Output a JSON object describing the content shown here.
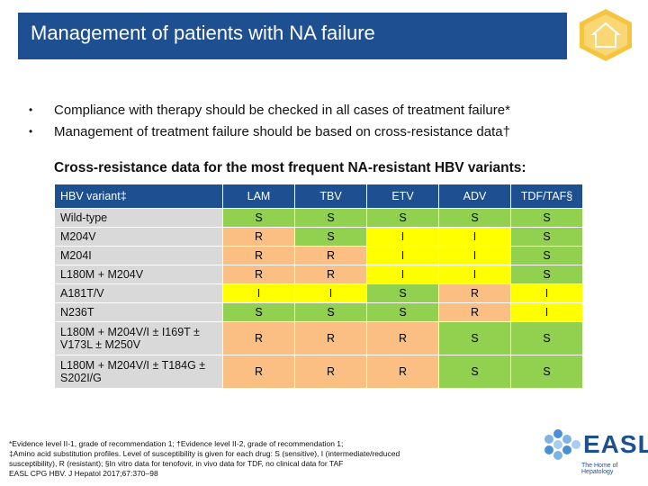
{
  "slide": {
    "title": "Management of patients with NA failure",
    "bullets": [
      "Compliance with therapy should be checked in all cases of treatment failure*",
      "Management of treatment failure should be based on cross-resistance data†"
    ],
    "subheading": "Cross-resistance data for the most frequent NA-resistant HBV variants:"
  },
  "table": {
    "headers": [
      "HBV variant‡",
      "LAM",
      "TBV",
      "ETV",
      "ADV",
      "TDF/TAF§"
    ],
    "rows": [
      {
        "variant": "Wild-type",
        "values": [
          "S",
          "S",
          "S",
          "S",
          "S"
        ]
      },
      {
        "variant": "M204V",
        "values": [
          "R",
          "S",
          "I",
          "I",
          "S"
        ]
      },
      {
        "variant": "M204I",
        "values": [
          "R",
          "R",
          "I",
          "I",
          "S"
        ]
      },
      {
        "variant": "L180M + M204V",
        "values": [
          "R",
          "R",
          "I",
          "I",
          "S"
        ]
      },
      {
        "variant": "A181T/V",
        "values": [
          "I",
          "I",
          "S",
          "R",
          "I"
        ]
      },
      {
        "variant": "N236T",
        "values": [
          "S",
          "S",
          "S",
          "R",
          "I"
        ]
      },
      {
        "variant": "L180M + M204V/I ± I169T ± V173L ± M250V",
        "values": [
          "R",
          "R",
          "R",
          "S",
          "S"
        ]
      },
      {
        "variant": "L180M + M204V/I ± T184G ± S202I/G",
        "values": [
          "R",
          "R",
          "R",
          "S",
          "S"
        ]
      }
    ]
  },
  "footnotes": [
    "*Evidence level II-1, grade of recommendation 1; †Evidence level II-2, grade of recommendation 1;",
    "‡Amino acid substitution profiles. Level of susceptibility is given for each drug: S (sensitive), I (intermediate/reduced",
    "susceptibility), R (resistant); §In vitro data for tenofovir, in vivo data for TDF, no clinical data for TAF",
    "EASL CPG HBV. J Hepatol 2017;67:370–98"
  ],
  "logo": {
    "text": "EASL",
    "tagline": "The Home of Hepatology"
  },
  "colors": {
    "brand": "#1d4f91",
    "sensitive": "#92d050",
    "resistant": "#fbbf84",
    "intermediate": "#ffff00",
    "variant_bg": "#d9d9d9"
  }
}
